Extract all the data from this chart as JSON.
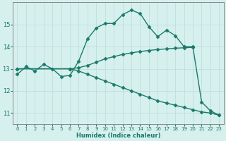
{
  "xlabel": "Humidex (Indice chaleur)",
  "background_color": "#d6f0ee",
  "grid_color": "#c0dedd",
  "line_color": "#1a7a6a",
  "xlim": [
    -0.5,
    23.5
  ],
  "ylim": [
    10.5,
    16.0
  ],
  "yticks": [
    11,
    12,
    13,
    14,
    15
  ],
  "xticks": [
    0,
    1,
    2,
    3,
    4,
    5,
    6,
    7,
    8,
    9,
    10,
    11,
    12,
    13,
    14,
    15,
    16,
    17,
    18,
    19,
    20,
    21,
    22,
    23
  ],
  "curve1_x": [
    0,
    1,
    2,
    3,
    4,
    5,
    6,
    7,
    8,
    9,
    10,
    11,
    12,
    13,
    14,
    15,
    16,
    17,
    18,
    19,
    20,
    21,
    22,
    23
  ],
  "curve1_y": [
    12.75,
    13.1,
    12.9,
    13.2,
    13.0,
    12.65,
    12.7,
    13.35,
    14.35,
    14.85,
    15.05,
    15.05,
    15.45,
    15.65,
    15.5,
    14.9,
    14.45,
    14.75,
    14.5,
    14.0,
    14.0,
    11.5,
    11.1,
    10.9
  ],
  "curve2_x": [
    0,
    6,
    7,
    8,
    9,
    10,
    11,
    12,
    13,
    14,
    15,
    16,
    17,
    18,
    19,
    20
  ],
  "curve2_y": [
    13.0,
    13.0,
    13.05,
    13.15,
    13.3,
    13.45,
    13.55,
    13.65,
    13.72,
    13.78,
    13.83,
    13.87,
    13.9,
    13.93,
    13.95,
    13.97
  ],
  "curve3_x": [
    0,
    6,
    7,
    8,
    9,
    10,
    11,
    12,
    13,
    14,
    15,
    16,
    17,
    18,
    19,
    20,
    21,
    22,
    23
  ],
  "curve3_y": [
    13.0,
    13.0,
    12.9,
    12.75,
    12.6,
    12.45,
    12.3,
    12.15,
    12.0,
    11.85,
    11.7,
    11.55,
    11.45,
    11.35,
    11.25,
    11.15,
    11.05,
    11.0,
    10.9
  ],
  "marker": "D",
  "markersize": 2.5,
  "linewidth": 1.0
}
